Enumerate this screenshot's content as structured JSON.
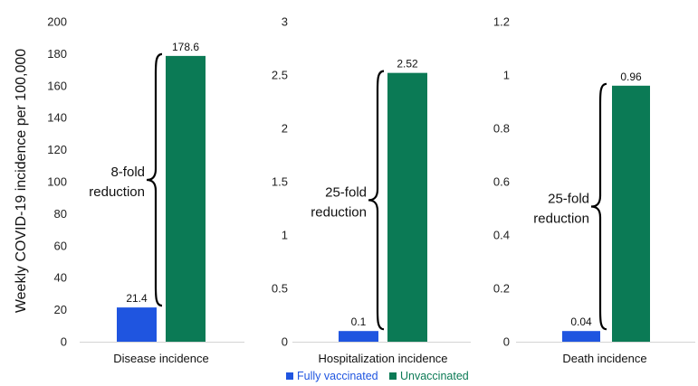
{
  "ylabel": "Weekly COVID-19 incidence per 100,000",
  "legend": [
    {
      "label": "Fully vaccinated",
      "color": "#1f55e0"
    },
    {
      "label": "Unvaccinated",
      "color": "#0b7a55"
    }
  ],
  "chart_data": [
    {
      "type": "bar",
      "categories": [
        "Disease incidence"
      ],
      "series": [
        {
          "name": "Fully vaccinated",
          "values": [
            21.4
          ]
        },
        {
          "name": "Unvaccinated",
          "values": [
            178.6
          ]
        }
      ],
      "data_labels": [
        "21.4",
        "178.6"
      ],
      "ylim": [
        0,
        200
      ],
      "yticks": [
        "0",
        "20",
        "40",
        "60",
        "80",
        "100",
        "120",
        "140",
        "160",
        "180",
        "200"
      ],
      "annotation": [
        "8-fold",
        "reduction"
      ]
    },
    {
      "type": "bar",
      "categories": [
        "Hospitalization incidence"
      ],
      "series": [
        {
          "name": "Fully vaccinated",
          "values": [
            0.1
          ]
        },
        {
          "name": "Unvaccinated",
          "values": [
            2.52
          ]
        }
      ],
      "data_labels": [
        "0.1",
        "2.52"
      ],
      "ylim": [
        0,
        3
      ],
      "yticks": [
        "0",
        "0.5",
        "1",
        "1.5",
        "2",
        "2.5",
        "3"
      ],
      "annotation": [
        "25-fold",
        "reduction"
      ]
    },
    {
      "type": "bar",
      "categories": [
        "Death incidence"
      ],
      "series": [
        {
          "name": "Fully vaccinated",
          "values": [
            0.04
          ]
        },
        {
          "name": "Unvaccinated",
          "values": [
            0.96
          ]
        }
      ],
      "data_labels": [
        "0.04",
        "0.96"
      ],
      "ylim": [
        0,
        1.2
      ],
      "yticks": [
        "0",
        "0.2",
        "0.4",
        "0.6",
        "0.8",
        "1",
        "1.2"
      ],
      "annotation": [
        "25-fold",
        "reduction"
      ]
    }
  ]
}
